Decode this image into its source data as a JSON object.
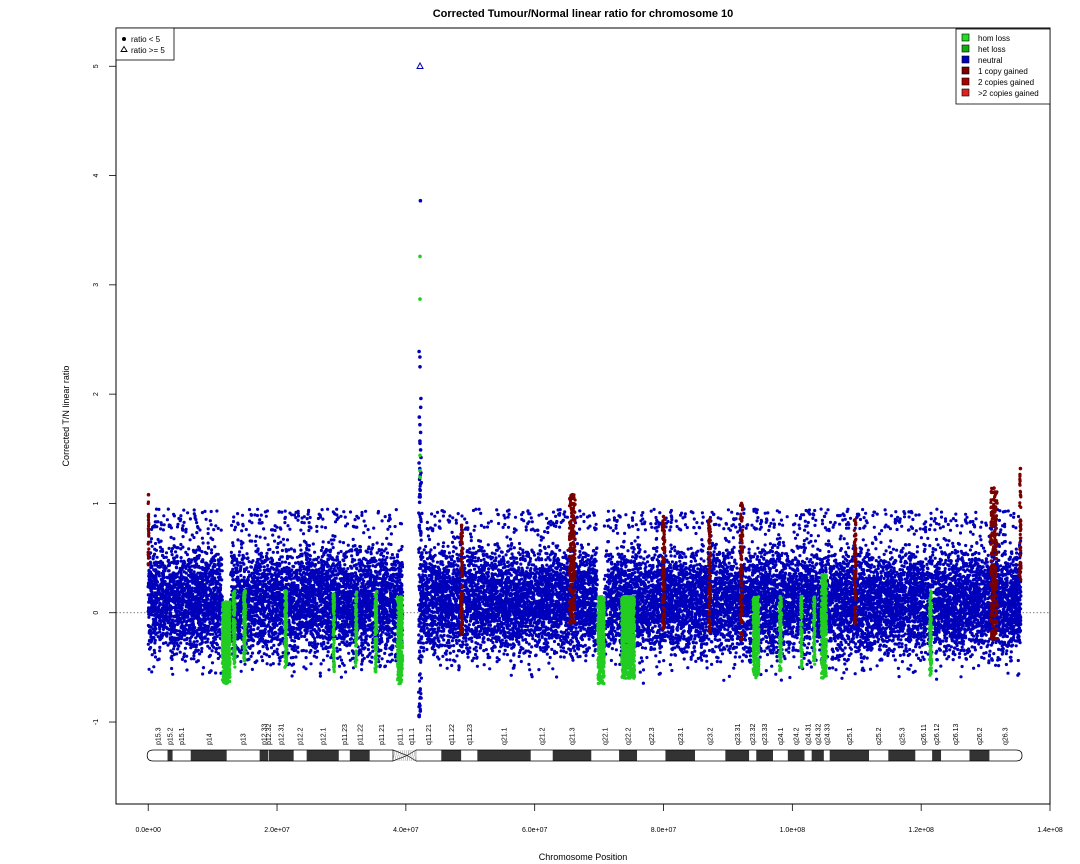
{
  "chart_data": {
    "type": "scatter",
    "title": "Corrected Tumour/Normal linear ratio for chromosome  10",
    "xlabel": "Chromosome Position",
    "ylabel": "Corrected T/N linear ratio",
    "xlim": [
      -5000000,
      140000000
    ],
    "ylim": [
      -1.75,
      5.35
    ],
    "x_ticks": [
      0,
      20000000,
      40000000,
      60000000,
      80000000,
      100000000,
      120000000,
      140000000
    ],
    "x_tick_labels": [
      "0.0e+00",
      "2.0e+07",
      "4.0e+07",
      "6.0e+07",
      "8.0e+07",
      "1.0e+08",
      "1.2e+08",
      "1.4e+08"
    ],
    "y_ticks": [
      -1,
      0,
      1,
      2,
      3,
      4,
      5
    ],
    "y_tick_labels": [
      "-1",
      "0",
      "1",
      "2",
      "3",
      "4",
      "5"
    ],
    "reference_line_y": 0,
    "shape_legend": {
      "placement": "top-left",
      "items": [
        {
          "label": "ratio < 5",
          "symbol": "filled-circle"
        },
        {
          "label": "ratio >= 5",
          "symbol": "open-triangle"
        }
      ]
    },
    "color_legend": {
      "placement": "top-right",
      "items": [
        {
          "label": "hom loss",
          "color": "#22dd22"
        },
        {
          "label": "het loss",
          "color": "#11aa11"
        },
        {
          "label": "neutral",
          "color": "#0000bb"
        },
        {
          "label": "1 copy gained",
          "color": "#7a0000"
        },
        {
          "label": "2 copies gained",
          "color": "#aa0000"
        },
        {
          "label": ">2 copies gained",
          "color": "#dd2222"
        }
      ]
    },
    "series": [
      {
        "name": "neutral",
        "color": "#0000bb",
        "regions": [
          [
            0,
            11500000
          ],
          [
            12800000,
            39500000
          ],
          [
            42300000,
            69700000
          ],
          [
            70800000,
            135500000
          ]
        ],
        "typical_range": [
          -0.45,
          0.75
        ]
      },
      {
        "name": "het loss",
        "color": "#22cc22",
        "segments": [
          {
            "x": [
              11500000,
              12700000
            ],
            "range": [
              -0.65,
              0.1
            ]
          },
          {
            "x": [
              13200000,
              13500000
            ],
            "range": [
              -0.5,
              0.2
            ]
          },
          {
            "x": [
              14800000,
              15100000
            ],
            "range": [
              -0.45,
              0.2
            ]
          },
          {
            "x": [
              21200000,
              21500000
            ],
            "range": [
              -0.5,
              0.2
            ]
          },
          {
            "x": [
              28700000,
              28900000
            ],
            "range": [
              -0.55,
              0.2
            ]
          },
          {
            "x": [
              32200000,
              32400000
            ],
            "range": [
              -0.5,
              0.2
            ]
          },
          {
            "x": [
              35200000,
              35500000
            ],
            "range": [
              -0.55,
              0.2
            ]
          },
          {
            "x": [
              38700000,
              39500000
            ],
            "range": [
              -0.65,
              0.15
            ]
          },
          {
            "x": [
              69800000,
              70800000
            ],
            "range": [
              -0.65,
              0.15
            ]
          },
          {
            "x": [
              73500000,
              75500000
            ],
            "range": [
              -0.6,
              0.15
            ]
          },
          {
            "x": [
              93900000,
              94800000
            ],
            "range": [
              -0.6,
              0.15
            ]
          },
          {
            "x": [
              98000000,
              98300000
            ],
            "range": [
              -0.55,
              0.15
            ]
          },
          {
            "x": [
              101300000,
              101500000
            ],
            "range": [
              -0.5,
              0.15
            ]
          },
          {
            "x": [
              103300000,
              103500000
            ],
            "range": [
              -0.5,
              0.15
            ]
          },
          {
            "x": [
              104500000,
              105300000
            ],
            "range": [
              -0.6,
              0.35
            ]
          },
          {
            "x": [
              121300000,
              121600000
            ],
            "range": [
              -0.6,
              0.2
            ]
          }
        ]
      },
      {
        "name": "1 copy gained",
        "color": "#7a0000",
        "segments": [
          {
            "x": [
              0,
              100000
            ],
            "range": [
              0.4,
              1.08
            ]
          },
          {
            "x": [
              48500000,
              48800000
            ],
            "range": [
              -0.2,
              0.8
            ]
          },
          {
            "x": [
              65400000,
              66300000
            ],
            "range": [
              -0.1,
              1.08
            ]
          },
          {
            "x": [
              79800000,
              80200000
            ],
            "range": [
              -0.15,
              0.88
            ]
          },
          {
            "x": [
              87000000,
              87300000
            ],
            "range": [
              -0.2,
              0.85
            ]
          },
          {
            "x": [
              91900000,
              92300000
            ],
            "range": [
              -0.25,
              1.0
            ]
          },
          {
            "x": [
              109600000,
              109900000
            ],
            "range": [
              -0.1,
              0.85
            ]
          },
          {
            "x": [
              130800000,
              131800000
            ],
            "range": [
              -0.25,
              1.14
            ]
          },
          {
            "x": [
              135300000,
              135500000
            ],
            "range": [
              0.3,
              1.32
            ]
          }
        ]
      },
      {
        "name": "centromere-spike",
        "color": "#0000bb",
        "x_range": [
          42000000,
          42400000
        ],
        "values": [
          3.77,
          2.39,
          2.34,
          2.25,
          1.96,
          1.88,
          1.79,
          1.72,
          1.65,
          1.57,
          1.55,
          1.49,
          1.42,
          1.37,
          1.32,
          1.28,
          1.22,
          1.18,
          1.12,
          1.06,
          1.01,
          -0.85,
          -0.9,
          -0.95
        ]
      },
      {
        "name": "centromere-spike-loss",
        "color": "#22cc22",
        "values": [
          3.26,
          2.87,
          1.44,
          1.3,
          1.24
        ]
      },
      {
        "name": "ratio >= 5",
        "color": "#0000bb",
        "symbol": "open-triangle",
        "points": [
          {
            "x": 42200000,
            "y": 5.0
          }
        ]
      }
    ],
    "ideogram": {
      "bands": [
        {
          "name": "p15.3",
          "start": 0,
          "end": 3000000,
          "stain": "gneg"
        },
        {
          "name": "p15.2",
          "start": 3000000,
          "end": 3800000,
          "stain": "gpos"
        },
        {
          "name": "p15.1",
          "start": 3800000,
          "end": 6600000,
          "stain": "gneg"
        },
        {
          "name": "p14",
          "start": 6600000,
          "end": 12200000,
          "stain": "gpos"
        },
        {
          "name": "p13",
          "start": 12200000,
          "end": 17300000,
          "stain": "gneg"
        },
        {
          "name": "p12.33",
          "start": 17300000,
          "end": 18600000,
          "stain": "gpos"
        },
        {
          "name": "p12.32",
          "start": 18600000,
          "end": 18700000,
          "stain": "gneg"
        },
        {
          "name": "p12.31",
          "start": 18700000,
          "end": 22600000,
          "stain": "gpos"
        },
        {
          "name": "p12.2",
          "start": 22600000,
          "end": 24600000,
          "stain": "gneg"
        },
        {
          "name": "p12.1",
          "start": 24600000,
          "end": 29600000,
          "stain": "gpos"
        },
        {
          "name": "p11.23",
          "start": 29600000,
          "end": 31300000,
          "stain": "gneg"
        },
        {
          "name": "p11.22",
          "start": 31300000,
          "end": 34400000,
          "stain": "gpos"
        },
        {
          "name": "p11.21",
          "start": 34400000,
          "end": 38000000,
          "stain": "gneg"
        },
        {
          "name": "p11.1",
          "start": 38000000,
          "end": 40200000,
          "stain": "acen"
        },
        {
          "name": "q11.1",
          "start": 40200000,
          "end": 41600000,
          "stain": "acen"
        },
        {
          "name": "q11.21",
          "start": 41600000,
          "end": 45500000,
          "stain": "gneg"
        },
        {
          "name": "q11.22",
          "start": 45500000,
          "end": 48600000,
          "stain": "gpos"
        },
        {
          "name": "q11.23",
          "start": 48600000,
          "end": 51100000,
          "stain": "gneg"
        },
        {
          "name": "q21.1",
          "start": 51100000,
          "end": 59400000,
          "stain": "gpos"
        },
        {
          "name": "q21.2",
          "start": 59400000,
          "end": 62800000,
          "stain": "gneg"
        },
        {
          "name": "q21.3",
          "start": 62800000,
          "end": 68800000,
          "stain": "gpos"
        },
        {
          "name": "q22.1",
          "start": 68800000,
          "end": 73100000,
          "stain": "gneg"
        },
        {
          "name": "q22.2",
          "start": 73100000,
          "end": 75900000,
          "stain": "gpos"
        },
        {
          "name": "q22.3",
          "start": 75900000,
          "end": 80300000,
          "stain": "gneg"
        },
        {
          "name": "q23.1",
          "start": 80300000,
          "end": 84900000,
          "stain": "gpos"
        },
        {
          "name": "q23.2",
          "start": 84900000,
          "end": 89600000,
          "stain": "gneg"
        },
        {
          "name": "q23.31",
          "start": 89600000,
          "end": 93300000,
          "stain": "gpos"
        },
        {
          "name": "q23.32",
          "start": 93300000,
          "end": 94400000,
          "stain": "gneg"
        },
        {
          "name": "q23.33",
          "start": 94400000,
          "end": 97000000,
          "stain": "gpos"
        },
        {
          "name": "q24.1",
          "start": 97000000,
          "end": 99300000,
          "stain": "gneg"
        },
        {
          "name": "q24.2",
          "start": 99300000,
          "end": 101900000,
          "stain": "gpos"
        },
        {
          "name": "q24.31",
          "start": 101900000,
          "end": 103000000,
          "stain": "gneg"
        },
        {
          "name": "q24.32",
          "start": 103000000,
          "end": 104900000,
          "stain": "gpos"
        },
        {
          "name": "q24.33",
          "start": 104900000,
          "end": 105800000,
          "stain": "gneg"
        },
        {
          "name": "q25.1",
          "start": 105800000,
          "end": 111900000,
          "stain": "gpos"
        },
        {
          "name": "q25.2",
          "start": 111900000,
          "end": 114900000,
          "stain": "gneg"
        },
        {
          "name": "q25.3",
          "start": 114900000,
          "end": 119100000,
          "stain": "gpos"
        },
        {
          "name": "q26.11",
          "start": 119100000,
          "end": 121700000,
          "stain": "gneg"
        },
        {
          "name": "q26.12",
          "start": 121700000,
          "end": 123100000,
          "stain": "gpos"
        },
        {
          "name": "q26.13",
          "start": 123100000,
          "end": 127500000,
          "stain": "gneg"
        },
        {
          "name": "q26.2",
          "start": 127500000,
          "end": 130600000,
          "stain": "gpos"
        },
        {
          "name": "q26.3",
          "start": 130600000,
          "end": 135500000,
          "stain": "gneg"
        }
      ]
    }
  }
}
